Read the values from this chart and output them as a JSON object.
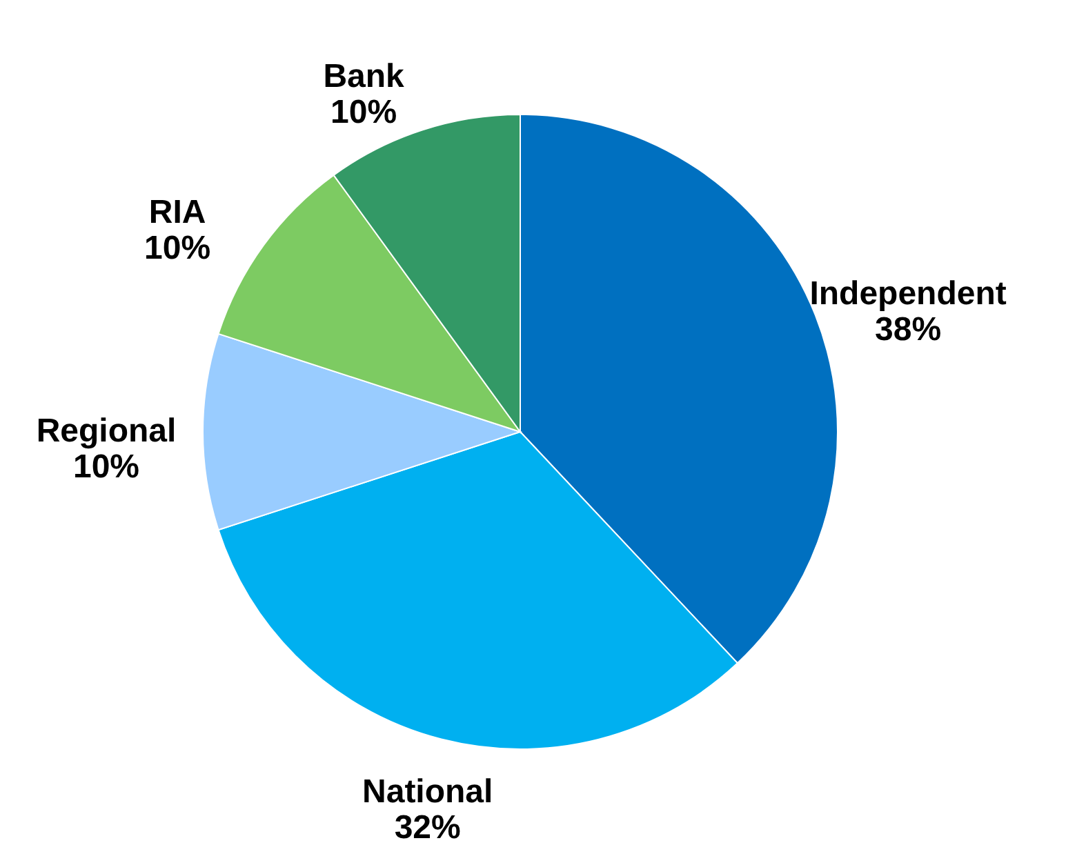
{
  "chart_data": {
    "type": "pie",
    "categories": [
      "Independent",
      "National",
      "Regional",
      "RIA",
      "Bank"
    ],
    "values": [
      38,
      32,
      10,
      10,
      10
    ],
    "value_labels": [
      "38%",
      "32%",
      "10%",
      "10%",
      "10%"
    ],
    "colors": [
      "#0070c0",
      "#00b0f0",
      "#99ccff",
      "#7dcb62",
      "#339966"
    ]
  }
}
